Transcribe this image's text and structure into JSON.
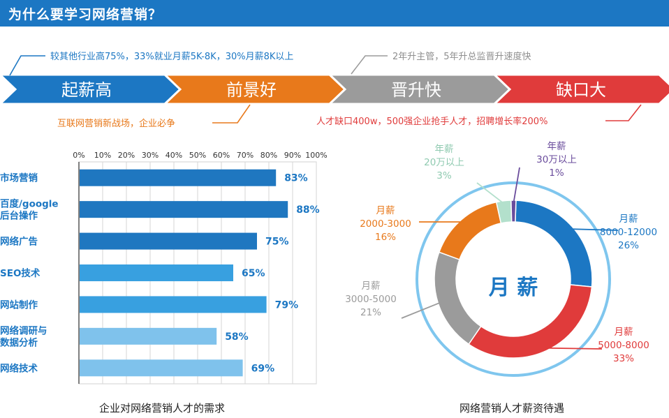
{
  "header": {
    "title": "为什么要学习网络营销？"
  },
  "banner": {
    "steps": [
      {
        "label": "起薪高",
        "color": "#1c77c3"
      },
      {
        "label": "前景好",
        "color": "#e8791b"
      },
      {
        "label": "晋升快",
        "color": "#9b9b9b"
      },
      {
        "label": "缺口大",
        "color": "#e03b3b"
      }
    ],
    "notes": {
      "salary": "较其他行业高75%，33%就业月薪5K-8K，30%月薪8K以上",
      "prospect": "互联网营销新战场，企业必争",
      "promotion": "2年升主管，5年升总监晋升速度快",
      "gap": "人才缺口400w，500强企业抢手人才，招聘增长率200%"
    }
  },
  "chart_data": [
    {
      "type": "bar",
      "orientation": "horizontal",
      "title": "企业对网络营销人才的需求",
      "categories": [
        "市场营销",
        "百度/google后台操作",
        "网络广告",
        "SEO技术",
        "网站制作",
        "网络调研与数据分析",
        "网络技术"
      ],
      "category_lines": [
        [
          "市场营销"
        ],
        [
          "百度/google",
          "后台操作"
        ],
        [
          "网络广告"
        ],
        [
          "SEO技术"
        ],
        [
          "网站制作"
        ],
        [
          "网络调研与",
          "数据分析"
        ],
        [
          "网络技术"
        ]
      ],
      "values": [
        83,
        88,
        75,
        65,
        79,
        58,
        69
      ],
      "value_labels": [
        "83%",
        "88%",
        "75%",
        "65%",
        "79%",
        "58%",
        "69%"
      ],
      "bar_colors": [
        "#1f77c0",
        "#1f77c0",
        "#1f77c0",
        "#38a0e0",
        "#38a0e0",
        "#7fc2ec",
        "#7fc2ec"
      ],
      "xlim": [
        0,
        100
      ],
      "ticks": [
        "0%",
        "10%",
        "20%",
        "30%",
        "40%",
        "50%",
        "60%",
        "70%",
        "80%",
        "90%",
        "100%"
      ],
      "grid": true
    },
    {
      "type": "pie",
      "style": "donut",
      "title": "网络营销人才薪资待遇",
      "center_label": "月 薪",
      "slices": [
        {
          "name": "月薪 8000-12000",
          "lines": [
            "月薪",
            "8000-12000",
            "26%"
          ],
          "value": 26,
          "color": "#1c77c3"
        },
        {
          "name": "月薪 5000-8000",
          "lines": [
            "月薪",
            "5000-8000",
            "33%"
          ],
          "value": 33,
          "color": "#e03b3b"
        },
        {
          "name": "月薪 3000-5000",
          "lines": [
            "月薪",
            "3000-5000",
            "21%"
          ],
          "value": 21,
          "color": "#9b9b9b"
        },
        {
          "name": "月薪 2000-3000",
          "lines": [
            "月薪",
            "2000-3000",
            "16%"
          ],
          "value": 16,
          "color": "#e8791b"
        },
        {
          "name": "年薪 20万以上",
          "lines": [
            "年薪",
            "20万以上",
            "3%"
          ],
          "value": 3,
          "color": "#b3e0cc"
        },
        {
          "name": "年薪 30万以上",
          "lines": [
            "年薪",
            "30万以上",
            "1%"
          ],
          "value": 1,
          "color": "#6a4c9c"
        }
      ]
    }
  ]
}
